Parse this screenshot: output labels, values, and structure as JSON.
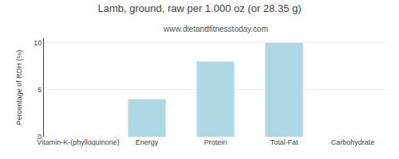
{
  "chart_data": {
    "type": "bar",
    "title": "Lamb, ground, raw per 1.000 oz (or 28.35 g)",
    "subtitle": "www.dietandfitnesstoday.com",
    "categories": [
      "Vitamin-K-(phylloquinone)",
      "Energy",
      "Protein",
      "Total-Fat",
      "Carbohydrate"
    ],
    "values": [
      0,
      4,
      8,
      10,
      0
    ],
    "color": "#add8e6",
    "ylabel": "Percentage of RDH (%)",
    "ylim": [
      0,
      10.5
    ],
    "yticks": [
      0,
      5,
      10
    ],
    "grid": true
  }
}
